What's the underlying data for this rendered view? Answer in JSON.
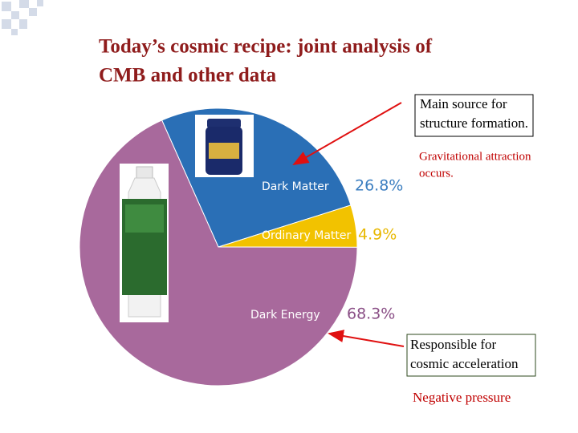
{
  "chart_data": {
    "type": "pie",
    "title": [
      "Today’s cosmic recipe: joint analysis of",
      "CMB and other data"
    ],
    "categories": [
      "Dark Matter",
      "Ordinary Matter",
      "Dark Energy"
    ],
    "values": [
      26.8,
      4.9,
      68.3
    ],
    "value_labels": [
      "26.8%",
      "4.9%",
      "68.3%"
    ],
    "colors": [
      "#2a6fb6",
      "#f2c200",
      "#a8699c"
    ],
    "label_colors": [
      "#3b7ec0",
      "#e8b800",
      "#8a4f86"
    ]
  },
  "annotations": [
    {
      "lines": [
        "Main source for",
        "structure formation."
      ],
      "boxed": true
    },
    {
      "lines": [
        "Gravitational attraction",
        "occurs."
      ],
      "boxed": false
    },
    {
      "lines": [
        "Responsible for",
        "cosmic acceleration"
      ],
      "boxed": true
    },
    {
      "lines": [
        "Negative pressure"
      ],
      "boxed": false
    }
  ]
}
